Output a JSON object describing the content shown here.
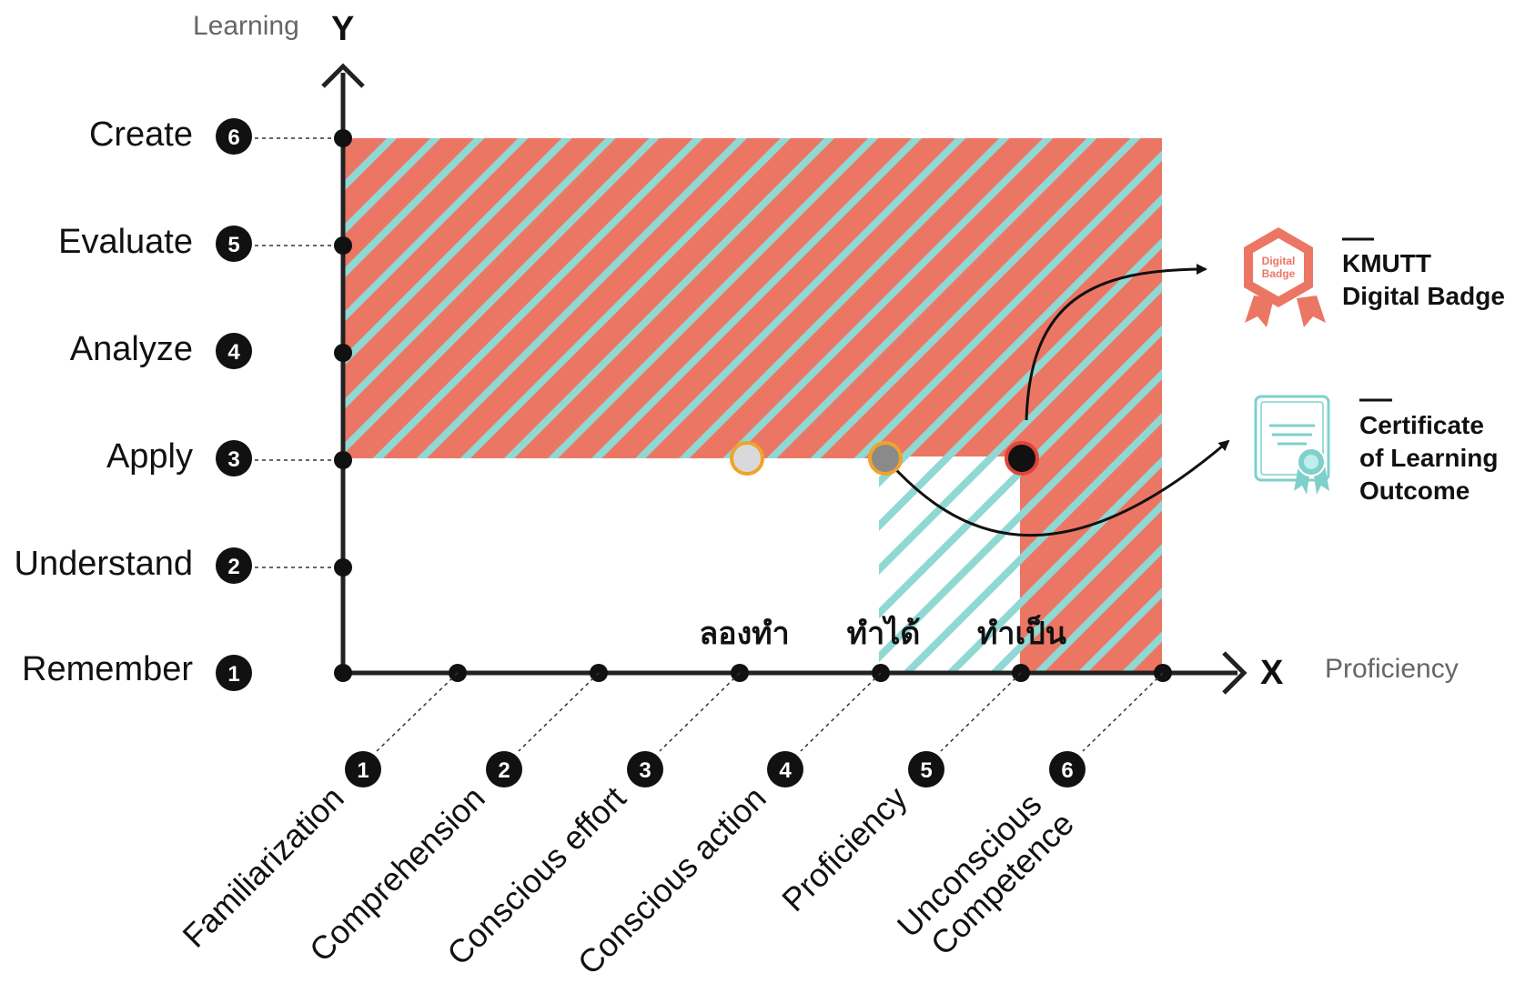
{
  "axes": {
    "y_name": "Learning",
    "y_letter": "Y",
    "x_name": "Proficiency",
    "x_letter": "X"
  },
  "y_levels": [
    {
      "num": "1",
      "label": "Remember"
    },
    {
      "num": "2",
      "label": "Understand"
    },
    {
      "num": "3",
      "label": "Apply"
    },
    {
      "num": "4",
      "label": "Analyze"
    },
    {
      "num": "5",
      "label": "Evaluate"
    },
    {
      "num": "6",
      "label": "Create"
    }
  ],
  "x_levels": [
    {
      "num": "1",
      "lines": [
        "Familiarization"
      ]
    },
    {
      "num": "2",
      "lines": [
        "Comprehension"
      ]
    },
    {
      "num": "3",
      "lines": [
        "Conscious effort"
      ]
    },
    {
      "num": "4",
      "lines": [
        "Conscious action"
      ]
    },
    {
      "num": "5",
      "lines": [
        "Proficiency"
      ]
    },
    {
      "num": "6",
      "lines": [
        "Unconscious",
        "Competence"
      ]
    }
  ],
  "markers": [
    {
      "label": "ลองทำ",
      "x_level": 3,
      "y_level": 3,
      "fill": "#d9d9d9",
      "stroke": "#f0a32a"
    },
    {
      "label": "ทำได้",
      "x_level": 4,
      "y_level": 3,
      "fill": "#8a8a8a",
      "stroke": "#f0a32a"
    },
    {
      "label": "ทำเป็น",
      "x_level": 5,
      "y_level": 3,
      "fill": "#111111",
      "stroke": "#e0453a"
    }
  ],
  "outcomes": [
    {
      "lines": [
        "KMUTT",
        "Digital Badge"
      ],
      "icon": "digital-badge-icon",
      "icon_lines": [
        "Digital",
        "Badge"
      ]
    },
    {
      "lines": [
        "Certificate",
        "of Learning",
        "Outcome"
      ],
      "icon": "certificate-icon"
    }
  ],
  "colors": {
    "salmon": "#ec7664",
    "teal": "#8fd8d4",
    "axis": "#222222",
    "badge": "#ec7664",
    "certificate": "#7fd0cc"
  }
}
